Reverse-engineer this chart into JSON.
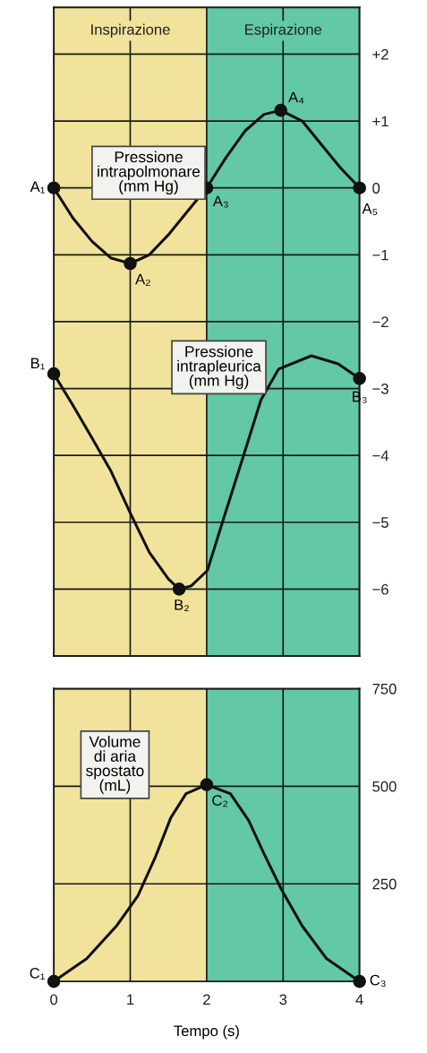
{
  "chart_data": [
    {
      "type": "line",
      "xlim": [
        0,
        4
      ],
      "ylim": [
        -7,
        2.7
      ],
      "xticks": [
        0,
        1,
        2,
        3,
        4
      ],
      "yticks": [
        {
          "value": 2,
          "label": "+2"
        },
        {
          "value": 1,
          "label": "+1"
        },
        0,
        {
          "value": -1,
          "label": "−1"
        },
        {
          "value": -2,
          "label": "−2"
        },
        {
          "value": -3,
          "label": "−3"
        },
        {
          "value": -4,
          "label": "−4"
        },
        {
          "value": -5,
          "label": "−5"
        },
        {
          "value": -6,
          "label": "−6"
        }
      ],
      "tick_labels": "y",
      "grid": true,
      "legend": false,
      "bands": [
        {
          "axis": "x",
          "from": 0,
          "to": 2,
          "label": "Inspirazione",
          "color": "#f1e39b"
        },
        {
          "axis": "x",
          "from": 2,
          "to": 4,
          "label": "Espirazione",
          "color": "#62c8a5"
        }
      ],
      "series": [
        {
          "name": "Pressione\nintrapolmonare\n(mm Hg)",
          "color": "#111111",
          "x": [
            0,
            0.25,
            0.5,
            0.75,
            1,
            1.25,
            1.5,
            1.75,
            2,
            2.25,
            2.5,
            2.75,
            2.97,
            3.25,
            3.5,
            3.75,
            4
          ],
          "values": [
            0,
            -0.45,
            -0.8,
            -1.05,
            -1.13,
            -1.0,
            -0.7,
            -0.35,
            0,
            0.45,
            0.85,
            1.1,
            1.16,
            1.0,
            0.65,
            0.3,
            0
          ]
        },
        {
          "name": "Pressione\nintrapleurica\n(mm Hg)",
          "color": "#111111",
          "x": [
            0,
            0.25,
            0.5,
            0.75,
            1,
            1.25,
            1.5,
            1.64,
            1.8,
            2.01,
            2.22,
            2.48,
            2.71,
            2.94,
            3.37,
            3.72,
            4
          ],
          "values": [
            -2.78,
            -3.25,
            -3.74,
            -4.24,
            -4.86,
            -5.45,
            -5.85,
            -6.0,
            -5.95,
            -5.72,
            -4.95,
            -4.01,
            -3.17,
            -2.71,
            -2.51,
            -2.63,
            -2.85
          ]
        },
        {
          "type": "scatter",
          "marker": "circle",
          "color": "#111111",
          "x": [
            0,
            1,
            2,
            2.97,
            4,
            0,
            1.64,
            4
          ],
          "values": [
            0,
            -1.13,
            0,
            1.16,
            0,
            -2.78,
            -6.0,
            -2.85
          ]
        }
      ],
      "annotations": [
        {
          "text": "A₁",
          "x": 0,
          "y": 0
        },
        {
          "text": "A₂",
          "x": 1,
          "y": -1.13
        },
        {
          "text": "A₃",
          "x": 2,
          "y": 0
        },
        {
          "text": "A₄",
          "x": 2.97,
          "y": 1.16
        },
        {
          "text": "A₅",
          "x": 4,
          "y": 0
        },
        {
          "text": "B₁",
          "x": 0,
          "y": -2.78
        },
        {
          "text": "B₂",
          "x": 1.64,
          "y": -6.0
        },
        {
          "text": "B₃",
          "x": 4,
          "y": -2.85
        }
      ]
    },
    {
      "type": "line",
      "xlim": [
        0,
        4
      ],
      "ylim": [
        0,
        750
      ],
      "xticks": [
        0,
        1,
        2,
        3,
        4
      ],
      "yticks": [
        250,
        500,
        750
      ],
      "xlabel": "Tempo (s)",
      "grid": true,
      "legend": false,
      "bands": [
        {
          "axis": "x",
          "from": 0,
          "to": 2,
          "color": "#f1e39b"
        },
        {
          "axis": "x",
          "from": 2,
          "to": 4,
          "color": "#62c8a5"
        }
      ],
      "series": [
        {
          "name": "Volume\ndi aria\nspostato\n(mL)",
          "color": "#111111",
          "x": [
            0,
            0.43,
            0.82,
            1.1,
            1.33,
            1.53,
            1.73,
            2.0,
            2.31,
            2.55,
            2.75,
            2.98,
            3.25,
            3.57,
            4
          ],
          "values": [
            0,
            58,
            142,
            219,
            319,
            419,
            481,
            504,
            481,
            412,
            327,
            235,
            142,
            58,
            0
          ]
        },
        {
          "type": "scatter",
          "marker": "circle",
          "color": "#111111",
          "x": [
            0,
            2,
            4
          ],
          "values": [
            0,
            504,
            0
          ]
        }
      ],
      "annotations": [
        {
          "text": "C₁",
          "x": 0,
          "y": 0
        },
        {
          "text": "C₂",
          "x": 2,
          "y": 504
        },
        {
          "text": "C₃",
          "x": 4,
          "y": 0
        }
      ]
    }
  ]
}
